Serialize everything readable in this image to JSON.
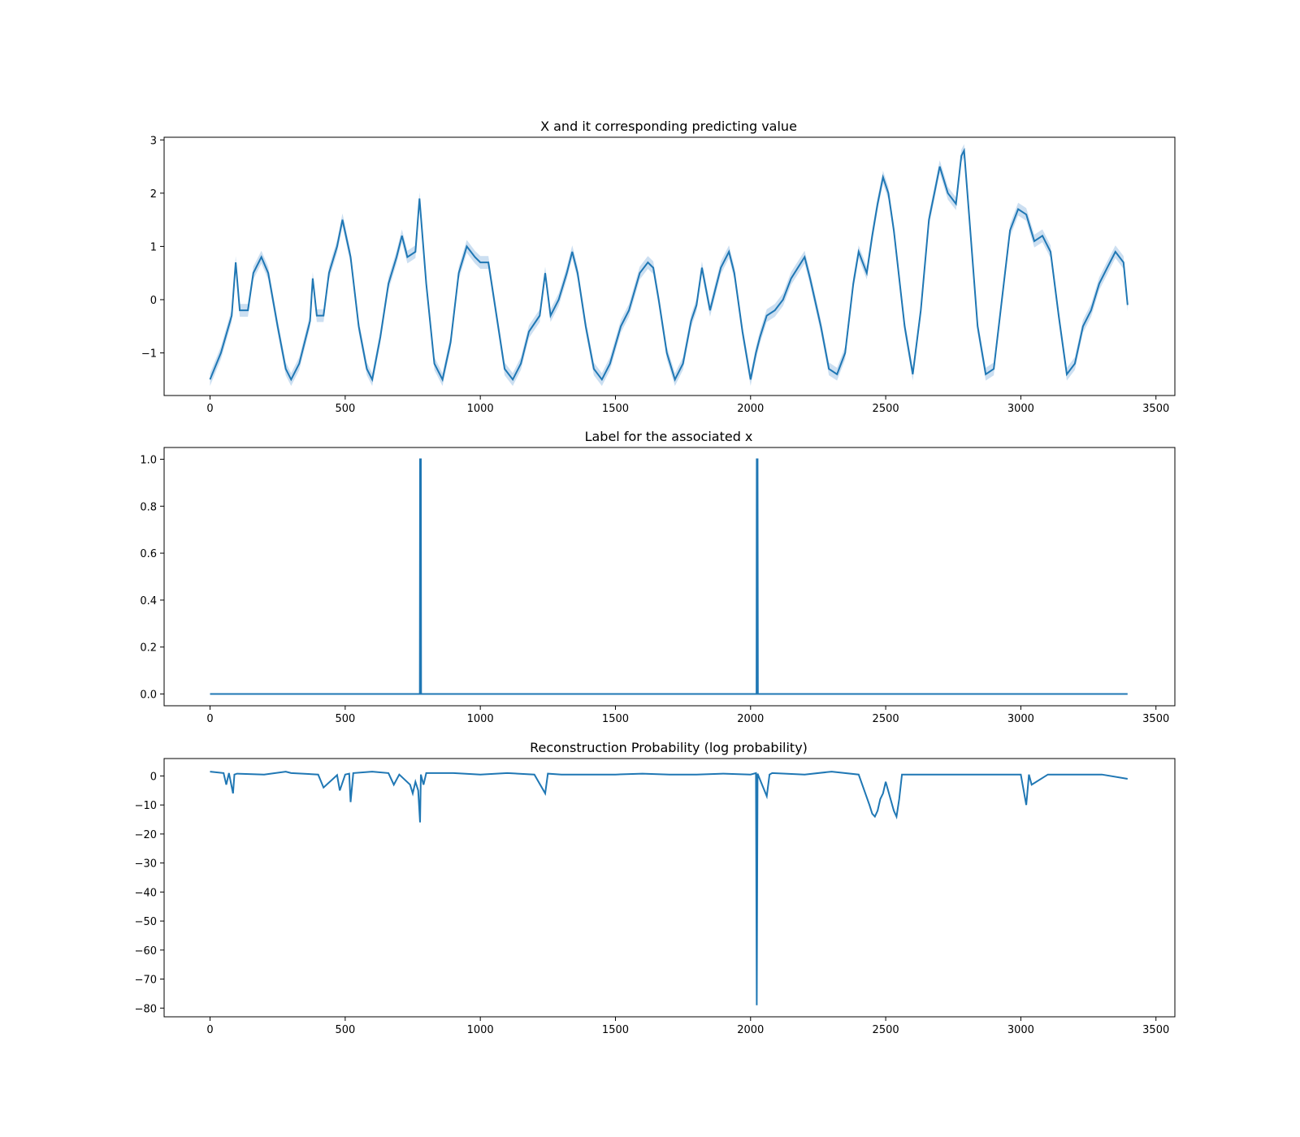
{
  "chart_data": [
    {
      "type": "line",
      "title": "X and it corresponding predicting value",
      "xlabel": "",
      "ylabel": "",
      "xlim": [
        -170,
        3570
      ],
      "ylim": [
        -1.8,
        3.05
      ],
      "xticks": [
        0,
        500,
        1000,
        1500,
        2000,
        2500,
        3000,
        3500
      ],
      "xtick_labels": [
        "0",
        "500",
        "1000",
        "1500",
        "2000",
        "2500",
        "3000",
        "3500"
      ],
      "yticks": [
        -1,
        0,
        1,
        2,
        3
      ],
      "ytick_labels": [
        "−1",
        "0",
        "1",
        "2",
        "3"
      ],
      "grid": false,
      "line_color": "#1f77b4",
      "band_color": "#c6dbef",
      "has_uncertainty_band": true,
      "series": [
        {
          "x": [
            0,
            40,
            80,
            95,
            110,
            140,
            160,
            190,
            215,
            250,
            280,
            300,
            330,
            370,
            380,
            395,
            420,
            440,
            470,
            490,
            520,
            550,
            580,
            600,
            630,
            660,
            690,
            710,
            730,
            760,
            775,
            800,
            830,
            860,
            890,
            920,
            950,
            980,
            1000,
            1030,
            1060,
            1090,
            1120,
            1150,
            1180,
            1220,
            1240,
            1260,
            1290,
            1320,
            1340,
            1360,
            1390,
            1420,
            1450,
            1480,
            1520,
            1550,
            1590,
            1620,
            1640,
            1660,
            1690,
            1720,
            1750,
            1780,
            1800,
            1820,
            1850,
            1870,
            1890,
            1920,
            1940,
            1970,
            2000,
            2020,
            2035,
            2060,
            2090,
            2120,
            2150,
            2200,
            2220,
            2260,
            2290,
            2320,
            2350,
            2380,
            2400,
            2430,
            2450,
            2470,
            2490,
            2510,
            2530,
            2570,
            2600,
            2630,
            2660,
            2680,
            2700,
            2730,
            2760,
            2780,
            2790,
            2810,
            2840,
            2870,
            2900,
            2930,
            2960,
            2990,
            3020,
            3050,
            3080,
            3110,
            3140,
            3170,
            3200,
            3230,
            3260,
            3290,
            3320,
            3350,
            3380,
            3395
          ],
          "y": [
            -1.5,
            -1.0,
            -0.3,
            0.7,
            -0.2,
            -0.2,
            0.5,
            0.8,
            0.5,
            -0.5,
            -1.3,
            -1.5,
            -1.2,
            -0.4,
            0.4,
            -0.3,
            -0.3,
            0.5,
            1.0,
            1.5,
            0.8,
            -0.5,
            -1.3,
            -1.5,
            -0.7,
            0.3,
            0.8,
            1.2,
            0.8,
            0.9,
            1.9,
            0.3,
            -1.2,
            -1.5,
            -0.8,
            0.5,
            1.0,
            0.8,
            0.7,
            0.7,
            -0.3,
            -1.3,
            -1.5,
            -1.2,
            -0.6,
            -0.3,
            0.5,
            -0.3,
            0.0,
            0.5,
            0.9,
            0.5,
            -0.5,
            -1.3,
            -1.5,
            -1.2,
            -0.5,
            -0.2,
            0.5,
            0.7,
            0.6,
            0.0,
            -1.0,
            -1.5,
            -1.2,
            -0.4,
            -0.1,
            0.6,
            -0.2,
            0.2,
            0.6,
            0.9,
            0.5,
            -0.6,
            -1.5,
            -1.0,
            -0.7,
            -0.3,
            -0.2,
            0.0,
            0.4,
            0.8,
            0.4,
            -0.5,
            -1.3,
            -1.4,
            -1.0,
            0.3,
            0.9,
            0.5,
            1.2,
            1.8,
            2.3,
            2.0,
            1.3,
            -0.5,
            -1.4,
            -0.2,
            1.5,
            2.0,
            2.5,
            2.0,
            1.8,
            2.7,
            2.8,
            1.5,
            -0.5,
            -1.4,
            -1.3,
            0.0,
            1.3,
            1.7,
            1.6,
            1.1,
            1.2,
            0.9,
            -0.3,
            -1.4,
            -1.2,
            -0.5,
            -0.2,
            0.3,
            0.6,
            0.9,
            0.7,
            -0.1
          ]
        }
      ]
    },
    {
      "type": "line",
      "title": "Label for the associated x",
      "xlabel": "",
      "ylabel": "",
      "xlim": [
        -170,
        3570
      ],
      "ylim": [
        -0.05,
        1.05
      ],
      "xticks": [
        0,
        500,
        1000,
        1500,
        2000,
        2500,
        3000,
        3500
      ],
      "xtick_labels": [
        "0",
        "500",
        "1000",
        "1500",
        "2000",
        "2500",
        "3000",
        "3500"
      ],
      "yticks": [
        0.0,
        0.2,
        0.4,
        0.6,
        0.8,
        1.0
      ],
      "ytick_labels": [
        "0.0",
        "0.2",
        "0.4",
        "0.6",
        "0.8",
        "1.0"
      ],
      "grid": false,
      "line_color": "#1f77b4",
      "series": [
        {
          "x": [
            0,
            776,
            777,
            780,
            781,
            2022,
            2023,
            2026,
            2027,
            3395
          ],
          "y": [
            0,
            0,
            1,
            1,
            0,
            0,
            1,
            1,
            0,
            0
          ]
        }
      ]
    },
    {
      "type": "line",
      "title": "Reconstruction Probability (log probability)",
      "xlabel": "",
      "ylabel": "",
      "xlim": [
        -170,
        3570
      ],
      "ylim": [
        -83,
        6
      ],
      "xticks": [
        0,
        500,
        1000,
        1500,
        2000,
        2500,
        3000,
        3500
      ],
      "xtick_labels": [
        "0",
        "500",
        "1000",
        "1500",
        "2000",
        "2500",
        "3000",
        "3500"
      ],
      "yticks": [
        0,
        -10,
        -20,
        -30,
        -40,
        -50,
        -60,
        -70,
        -80
      ],
      "ytick_labels": [
        "0",
        "−10",
        "−20",
        "−30",
        "−40",
        "−50",
        "−60",
        "−70",
        "−80"
      ],
      "grid": false,
      "line_color": "#1f77b4",
      "series": [
        {
          "x": [
            0,
            50,
            60,
            70,
            85,
            90,
            100,
            200,
            280,
            300,
            400,
            420,
            470,
            480,
            500,
            515,
            520,
            530,
            600,
            660,
            680,
            700,
            740,
            750,
            760,
            770,
            777,
            780,
            790,
            800,
            900,
            1000,
            1100,
            1200,
            1240,
            1250,
            1300,
            1400,
            1500,
            1600,
            1700,
            1800,
            1900,
            2000,
            2020,
            2023,
            2026,
            2060,
            2070,
            2080,
            2200,
            2300,
            2400,
            2440,
            2450,
            2460,
            2470,
            2480,
            2490,
            2500,
            2530,
            2540,
            2550,
            2560,
            2600,
            2700,
            2800,
            3000,
            3020,
            3030,
            3040,
            3100,
            3200,
            3300,
            3395
          ],
          "y": [
            1.5,
            1.0,
            -3,
            1.0,
            -6,
            0.5,
            0.8,
            0.5,
            1.5,
            1.0,
            0.5,
            -4,
            0.3,
            -5,
            0.5,
            0.8,
            -9,
            1.0,
            1.5,
            1.0,
            -3,
            0.5,
            -3,
            -6,
            -2,
            -5,
            -16,
            0.5,
            -3,
            1.0,
            1.0,
            0.5,
            1.0,
            0.5,
            -6,
            0.8,
            0.5,
            0.5,
            0.5,
            0.8,
            0.5,
            0.5,
            0.8,
            0.5,
            1.0,
            -79,
            0.8,
            -7,
            0.5,
            1.0,
            0.5,
            1.5,
            0.5,
            -10,
            -13,
            -14,
            -12,
            -8,
            -6,
            -2,
            -12,
            -14,
            -8,
            0.5,
            0.5,
            0.5,
            0.5,
            0.5,
            -10,
            0.5,
            -3,
            0.5,
            0.5,
            0.5,
            -1
          ]
        }
      ]
    }
  ]
}
